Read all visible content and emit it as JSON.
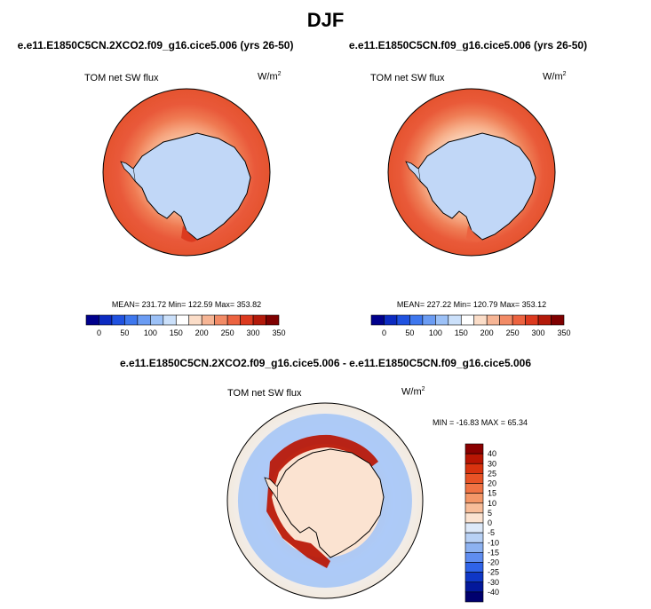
{
  "title": "DJF",
  "panels": [
    {
      "case": "e.e11.E1850C5CN.2XCO2.f09_g16.cice5.006 (yrs 26-50)",
      "variable": "TOM net SW flux",
      "units_base": "W/m",
      "units_exp": "2",
      "stats": "MEAN= 231.72  Min= 122.59  Max= 353.82"
    },
    {
      "case": "e.e11.E1850C5CN.f09_g16.cice5.006 (yrs 26-50)",
      "variable": "TOM net SW flux",
      "units_base": "W/m",
      "units_exp": "2",
      "stats": "MEAN= 227.22  Min= 120.79  Max= 353.12"
    }
  ],
  "diff": {
    "title": "e.e11.E1850C5CN.2XCO2.f09_g16.cice5.006 - e.e11.E1850C5CN.f09_g16.cice5.006",
    "variable": "TOM net SW flux",
    "units_base": "W/m",
    "units_exp": "2",
    "stats": "MIN = -16.83 MAX =  65.34"
  },
  "abs_colorbar": {
    "labels": [
      "0",
      "50",
      "100",
      "150",
      "200",
      "250",
      "300",
      "350"
    ],
    "colors": [
      "#00008c",
      "#0c2bc1",
      "#2052e0",
      "#3e77ee",
      "#6b9cf3",
      "#9cc1f7",
      "#cbe0fa",
      "#ffffff",
      "#fbddc8",
      "#f6b595",
      "#f28b66",
      "#ec6340",
      "#dc3a1f",
      "#b31a0a",
      "#7f0000"
    ]
  },
  "diff_colorbar": {
    "labels": [
      "40",
      "30",
      "25",
      "20",
      "15",
      "10",
      "5",
      "0",
      "-5",
      "-10",
      "-15",
      "-20",
      "-25",
      "-30",
      "-40"
    ],
    "colors": [
      "#8a0000",
      "#b81503",
      "#d8330f",
      "#e85326",
      "#f07344",
      "#f49768",
      "#f8bd99",
      "#fbe3d1",
      "#dde9f9",
      "#b8d1f5",
      "#8db2f1",
      "#5f8df0",
      "#2f63e8",
      "#0f37c6",
      "#03189b",
      "#00006e"
    ]
  }
}
